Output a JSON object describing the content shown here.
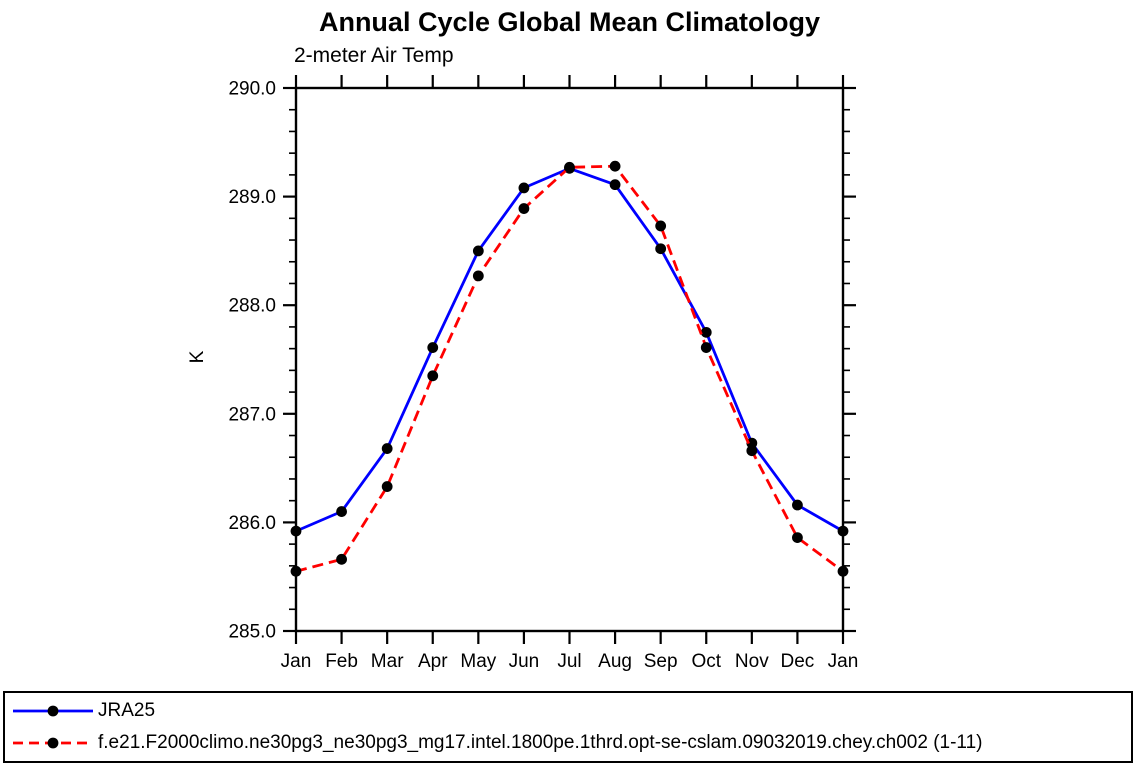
{
  "title": "Annual Cycle Global Mean Climatology",
  "subtitle": "2-meter Air Temp",
  "chart_data": {
    "type": "line",
    "title": "Annual Cycle Global Mean Climatology",
    "subtitle": "2-meter Air Temp",
    "xlabel": "",
    "ylabel": "K",
    "categories": [
      "Jan",
      "Feb",
      "Mar",
      "Apr",
      "May",
      "Jun",
      "Jul",
      "Aug",
      "Sep",
      "Oct",
      "Nov",
      "Dec",
      "Jan"
    ],
    "series": [
      {
        "name": "JRA25",
        "color": "#0000ff",
        "line_style": "solid",
        "marker": "filled-circle",
        "marker_color": "#000000",
        "values": [
          285.92,
          286.1,
          286.68,
          287.61,
          288.5,
          289.08,
          289.26,
          289.11,
          288.52,
          287.75,
          286.73,
          286.16,
          285.92
        ]
      },
      {
        "name": "f.e21.F2000climo.ne30pg3_ne30pg3_mg17.intel.1800pe.1thrd.opt-se-cslam.09032019.chey.ch002 (1-11)",
        "color": "#ff0000",
        "line_style": "dashed",
        "marker": "filled-circle",
        "marker_color": "#000000",
        "values": [
          285.55,
          285.66,
          286.33,
          287.35,
          288.27,
          288.89,
          289.27,
          289.28,
          288.73,
          287.61,
          286.66,
          285.86,
          285.55
        ]
      }
    ],
    "ylim": [
      285.0,
      290.0
    ],
    "y_major_ticks": [
      285.0,
      286.0,
      287.0,
      288.0,
      289.0,
      290.0
    ],
    "y_tick_labels": [
      "285.0",
      "286.0",
      "287.0",
      "288.0",
      "289.0",
      "290.0"
    ],
    "y_minor_step": 0.2,
    "grid": false,
    "axis_box": true,
    "ticks_direction": "out",
    "legend_position": "bottom-box"
  }
}
